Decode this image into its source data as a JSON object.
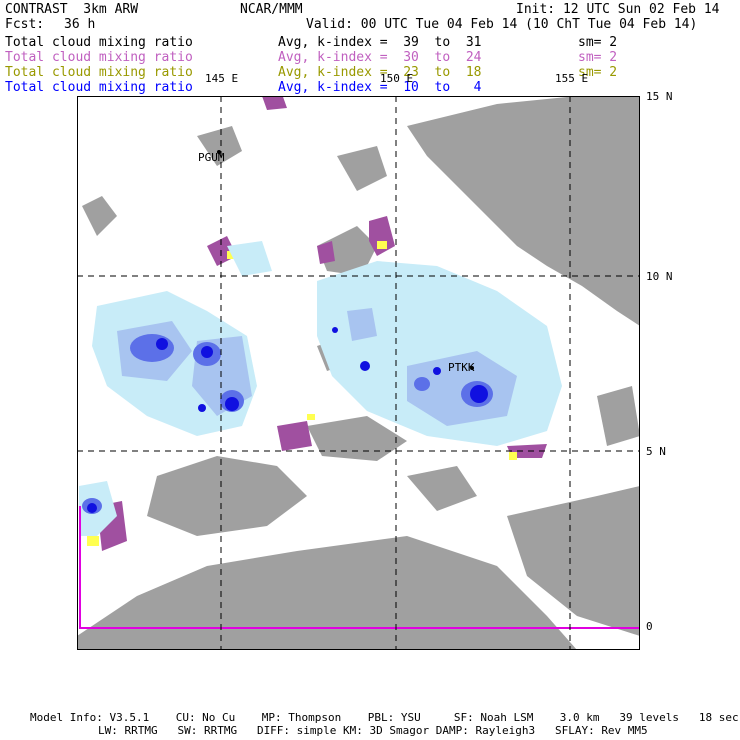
{
  "header": {
    "model": "CONTRAST  3km ARW",
    "org": "NCAR/MMM",
    "init": "Init: 12 UTC Sun 02 Feb 14",
    "fcst_label": "Fcst:",
    "fcst_value": "36 h",
    "valid": "Valid: 00 UTC Tue 04 Feb 14 (10 ChT Tue 04 Feb 14)"
  },
  "legend": [
    {
      "name": "Total cloud mixing ratio",
      "avg": "Avg, k-index =  39  to  31",
      "sm": "sm= 2",
      "color": "#000000"
    },
    {
      "name": "Total cloud mixing ratio",
      "avg": "Avg, k-index =  30  to  24",
      "sm": "sm= 2",
      "color": "#c060c0"
    },
    {
      "name": "Total cloud mixing ratio",
      "avg": "Avg, k-index =  23  to  18",
      "sm": "sm= 2",
      "color": "#999900"
    },
    {
      "name": "Total cloud mixing ratio",
      "avg": "Avg, k-index =  10  to   4",
      "sm": "",
      "color": "#0000ff"
    }
  ],
  "map": {
    "lon_labels": [
      "145 E",
      "150 E",
      "155 E"
    ],
    "lat_labels": [
      "15 N",
      "10 N",
      "5 N",
      "0"
    ],
    "stations": [
      "PGUM",
      "PTKK"
    ],
    "colors": {
      "land": "#a0a0a0",
      "cloud_light": "#c8ecf8",
      "cloud_mid": "#a8c4f0",
      "cloud_strong": "#5c70e8",
      "cloud_core": "#1010e0",
      "purple": "#a050a0",
      "yellow": "#ffff50",
      "boundary": "#e000e0"
    }
  },
  "footer": {
    "line1": "Model Info: V3.5.1    CU: No Cu    MP: Thompson    PBL: YSU     SF: Noah LSM    3.0 km   39 levels   18 sec",
    "line2": "LW: RRTMG   SW: RRTMG   DIFF: simple KM: 3D Smagor DAMP: Rayleigh3   SFLAY: Rev MM5"
  }
}
